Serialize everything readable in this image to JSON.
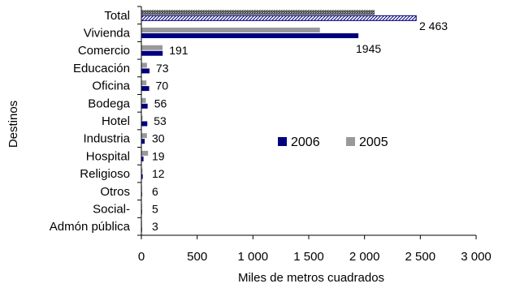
{
  "chart_data": {
    "type": "bar",
    "orientation": "horizontal",
    "categories": [
      "Total",
      "Vivienda",
      "Comercio",
      "Educación",
      "Oficina",
      "Bodega",
      "Hotel",
      "Industria",
      "Hospital",
      "Religioso",
      "Otros",
      "Social-",
      "Admón pública"
    ],
    "series": [
      {
        "name": "2006",
        "color": "#00007f",
        "values": [
          2463,
          1945,
          191,
          73,
          70,
          56,
          53,
          30,
          19,
          12,
          6,
          5,
          3
        ],
        "labels": [
          "2 463",
          "1945",
          "191",
          "73",
          "70",
          "56",
          "53",
          "30",
          "19",
          "12",
          "6",
          "5",
          "3"
        ]
      },
      {
        "name": "2005",
        "color": "#999999",
        "values": [
          2090,
          1600,
          190,
          50,
          45,
          40,
          10,
          50,
          60,
          10,
          5,
          5,
          2
        ]
      }
    ],
    "special_pattern": {
      "category": "Total",
      "series_2006": "diagonal-hatch",
      "series_2005": "dotted"
    },
    "xlim": [
      0,
      3000
    ],
    "xticks": [
      0,
      500,
      1000,
      1500,
      2000,
      2500,
      3000
    ],
    "xtick_labels": [
      "0",
      "500",
      "1 000",
      "1 500",
      "2 000",
      "2 500",
      "3 000"
    ],
    "xlabel": "Miles de metros cuadrados",
    "ylabel": "Destinos",
    "legend": {
      "position": "right-center",
      "entries": [
        "2006",
        "2005"
      ]
    },
    "grid": false
  }
}
